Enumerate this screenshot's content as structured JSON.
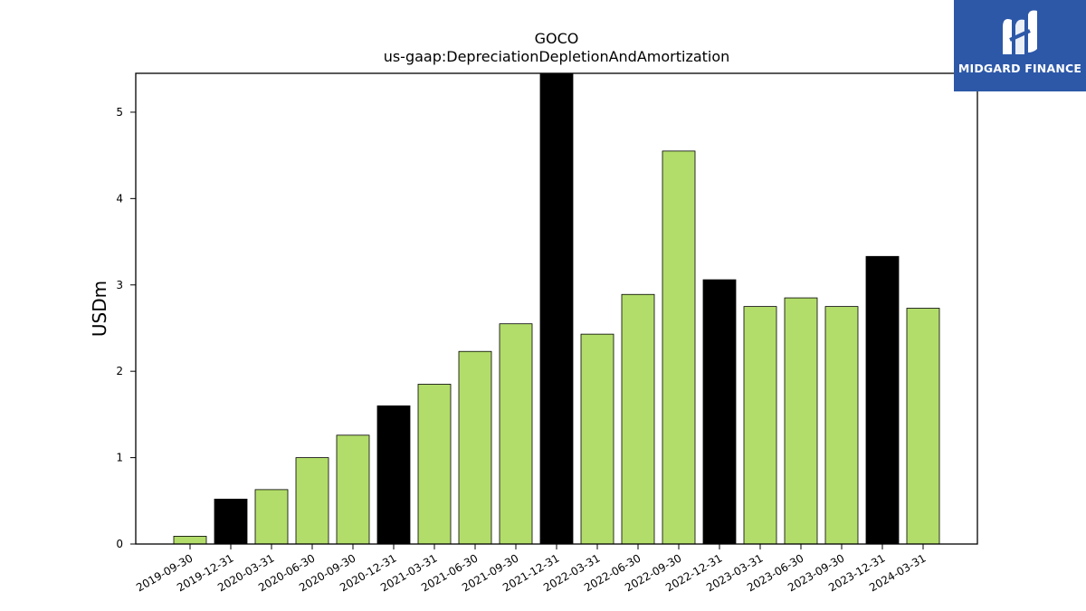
{
  "chart_data": {
    "type": "bar",
    "title": "GOCO",
    "subtitle": "us-gaap:DepreciationDepletionAndAmortization",
    "xlabel": "",
    "ylabel": "USDm",
    "ylim": [
      0,
      5.45
    ],
    "yticks": [
      0,
      1,
      2,
      3,
      4,
      5
    ],
    "grid": false,
    "categories": [
      "2019-09-30",
      "2019-12-31",
      "2020-03-31",
      "2020-06-30",
      "2020-09-30",
      "2020-12-31",
      "2021-03-31",
      "2021-06-30",
      "2021-09-30",
      "2021-12-31",
      "2022-03-31",
      "2022-06-30",
      "2022-09-30",
      "2022-12-31",
      "2023-03-31",
      "2023-06-30",
      "2023-09-30",
      "2023-12-31",
      "2024-03-31"
    ],
    "values": [
      0.09,
      0.52,
      0.63,
      1.0,
      1.26,
      1.6,
      1.85,
      2.23,
      2.55,
      5.45,
      2.43,
      2.89,
      4.55,
      3.06,
      2.75,
      2.85,
      2.75,
      3.33,
      2.73
    ],
    "colors": {
      "quarter": "#b2dd6a",
      "year_end": "#000000",
      "edge": "#000000"
    }
  },
  "logo": {
    "text": "MIDGARD FINANCE",
    "background": "#2d58a8"
  }
}
